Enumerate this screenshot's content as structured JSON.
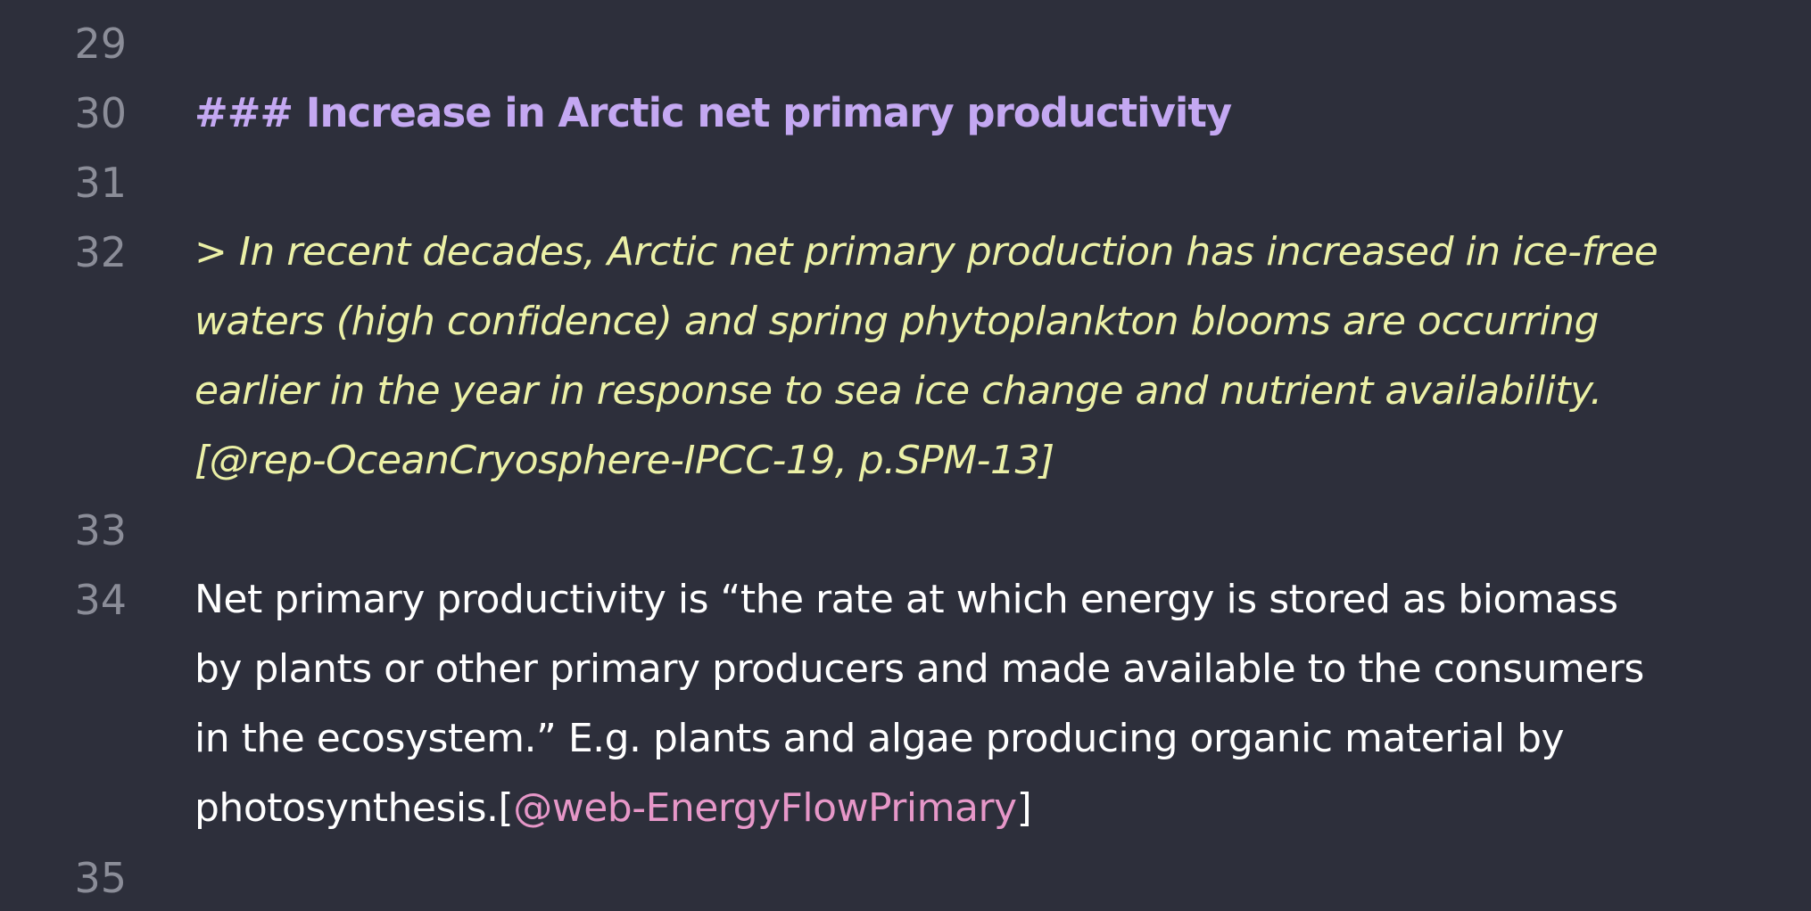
{
  "colors": {
    "background": "#2d2f3b",
    "line_number": "#8b8d98",
    "heading": "#c4a8f2",
    "quote": "#ebf0a6",
    "text": "#ffffff",
    "citation": "#e697c8"
  },
  "lines": {
    "l29": {
      "number": "29"
    },
    "l30": {
      "number": "30",
      "text": "### Increase in Arctic net primary productivity"
    },
    "l31": {
      "number": "31"
    },
    "l32": {
      "number": "32",
      "text": "> In recent decades, Arctic net primary production has increased in ice-free waters (high confidence) and spring phytoplankton blooms are occurring earlier in the year in response to sea ice change and nutrient availability. [@rep-OceanCryosphere-IPCC-19, p.SPM-13]"
    },
    "l33": {
      "number": "33"
    },
    "l34": {
      "number": "34",
      "text_before": "Net primary productivity is “the rate at which energy is stored as biomass by plants or other primary producers and made available to the consumers in the ecosystem.” E.g. plants and algae producing organic material by photosynthesis.[",
      "citation": "@web-EnergyFlowPrimary",
      "text_after": "]"
    },
    "l35": {
      "number": "35"
    }
  }
}
